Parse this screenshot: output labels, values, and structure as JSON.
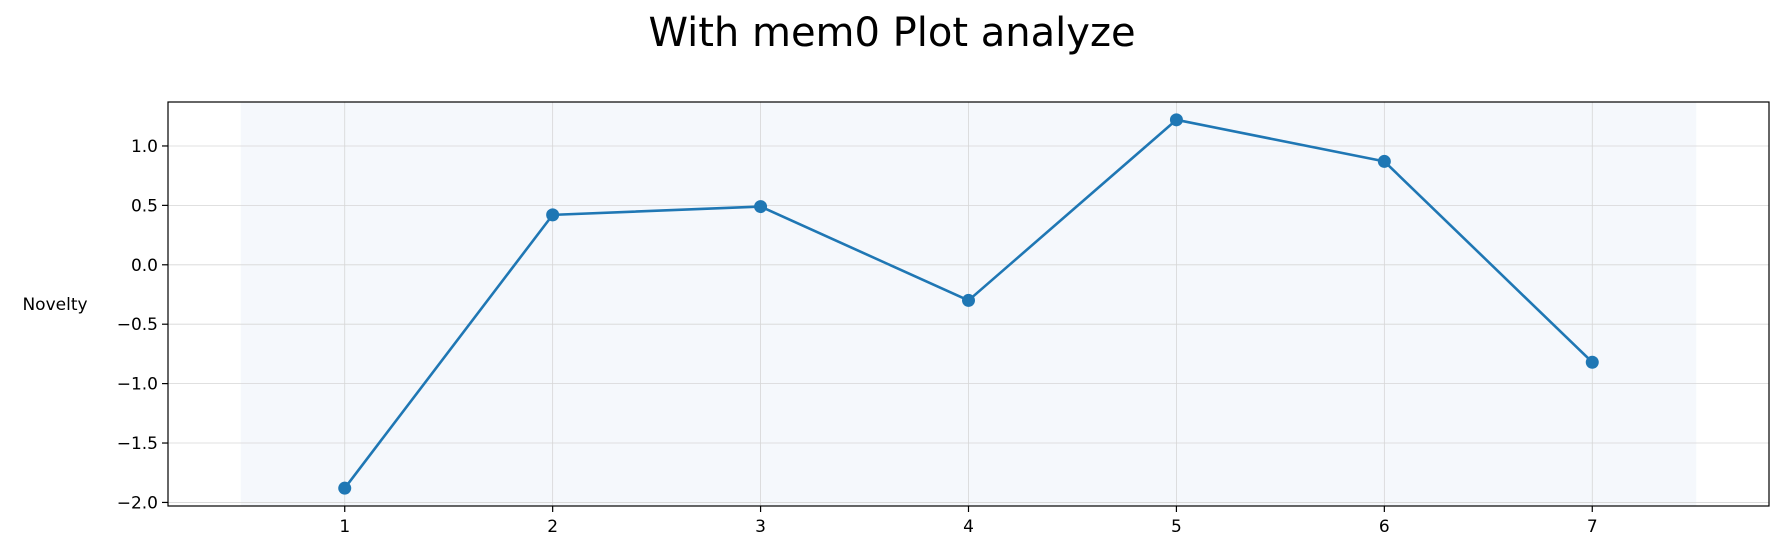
{
  "chart_data": {
    "type": "line",
    "title": "With mem0 Plot analyze",
    "xlabel": "",
    "ylabel": "Novelty",
    "x": [
      1,
      2,
      3,
      4,
      5,
      6,
      7
    ],
    "series": [
      {
        "values": [
          -1.88,
          0.42,
          0.49,
          -0.3,
          1.22,
          0.87,
          -0.82
        ],
        "color": "#1f77b4",
        "marker": "circle"
      }
    ],
    "xlim": [
      0.15,
      7.85
    ],
    "ylim": [
      -2.03,
      1.37
    ],
    "xticks": [
      1,
      2,
      3,
      4,
      5,
      6,
      7
    ],
    "yticks": [
      1.0,
      0.5,
      0.0,
      -0.5,
      -1.0,
      -1.5,
      -2.0
    ],
    "ytick_labels": [
      "1.0",
      "0.5",
      "0.0",
      "−0.5",
      "−1.0",
      "−1.5",
      "−2.0"
    ],
    "shaded_x_range": [
      0.5,
      7.5
    ],
    "shade_color": "#f5f8fc",
    "grid": true
  }
}
